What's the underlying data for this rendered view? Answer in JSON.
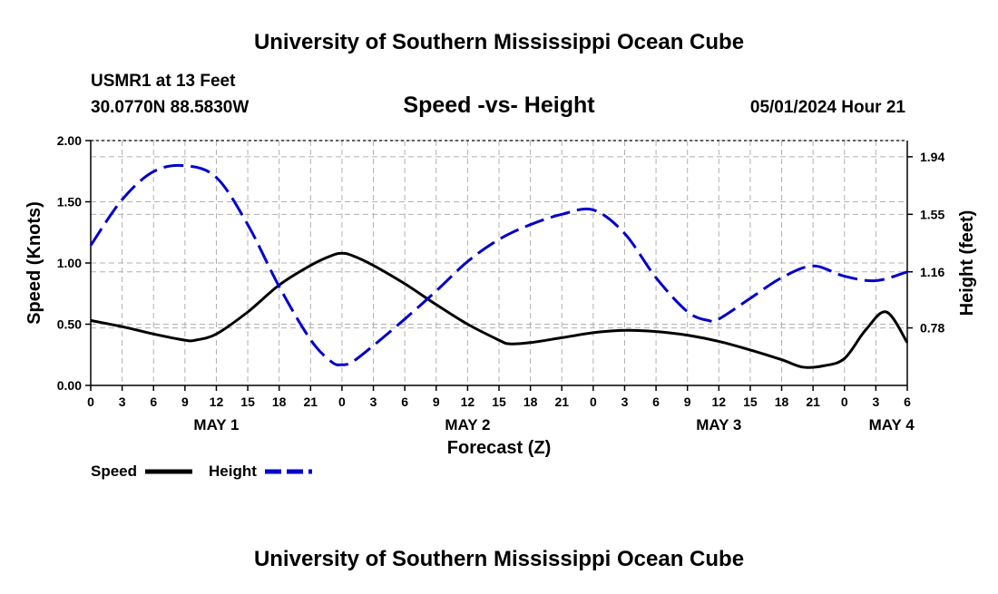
{
  "chart_data": {
    "type": "line",
    "title": "University of Southern Mississippi Ocean Cube",
    "footer_title": "University of Southern Mississippi Ocean Cube",
    "station": "USMR1 at 13 Feet",
    "coordinates": "30.0770N  88.5830W",
    "subtitle": "Speed -vs- Height",
    "issued": "05/01/2024 Hour 21",
    "xlabel": "Forecast (Z)",
    "ylabel_left": "Speed (Knots)",
    "ylabel_right": "Height (feet)",
    "x_range_hours": [
      0,
      78
    ],
    "ylim_left": [
      0,
      2.0
    ],
    "ylim_right_values": [
      0.39,
      2.05
    ],
    "left_ticks": [
      "0.00",
      "0.50",
      "1.00",
      "1.50",
      "2.00"
    ],
    "right_ticks": [
      "0.78",
      "1.16",
      "1.55",
      "1.94"
    ],
    "x_tick_labels": [
      "0",
      "3",
      "6",
      "9",
      "12",
      "15",
      "18",
      "21",
      "0",
      "3",
      "6",
      "9",
      "12",
      "15",
      "18",
      "21",
      "0",
      "3",
      "6",
      "9",
      "12",
      "15",
      "18",
      "21",
      "0",
      "3",
      "6"
    ],
    "day_labels": [
      {
        "label": "MAY 1",
        "hour": 12
      },
      {
        "label": "MAY 2",
        "hour": 36
      },
      {
        "label": "MAY 3",
        "hour": 60
      },
      {
        "label": "MAY 4",
        "hour": 76.5
      }
    ],
    "grid": true,
    "series": [
      {
        "name": "Speed",
        "axis": "left",
        "style": "solid",
        "color": "#000000",
        "x": [
          0,
          3,
          6,
          9,
          10,
          12,
          15,
          18,
          21,
          23,
          24,
          25,
          27,
          30,
          33,
          36,
          39,
          40,
          42,
          45,
          48,
          51,
          54,
          57,
          60,
          63,
          66,
          68,
          70,
          72,
          74,
          76,
          78
        ],
        "values": [
          0.53,
          0.48,
          0.42,
          0.37,
          0.37,
          0.42,
          0.6,
          0.82,
          0.98,
          1.06,
          1.08,
          1.06,
          0.98,
          0.83,
          0.66,
          0.5,
          0.37,
          0.34,
          0.35,
          0.39,
          0.43,
          0.45,
          0.44,
          0.41,
          0.36,
          0.29,
          0.21,
          0.15,
          0.16,
          0.22,
          0.45,
          0.6,
          0.35
        ]
      },
      {
        "name": "Height",
        "axis": "right",
        "style": "dashed",
        "color": "#0000cc",
        "x": [
          0,
          3,
          6,
          9,
          12,
          15,
          18,
          21,
          23,
          24,
          25,
          27,
          30,
          33,
          36,
          39,
          42,
          45,
          48,
          51,
          54,
          57,
          59,
          60,
          63,
          66,
          69,
          72,
          75,
          78
        ],
        "values": [
          1.34,
          1.65,
          1.84,
          1.88,
          1.8,
          1.48,
          1.06,
          0.7,
          0.55,
          0.53,
          0.55,
          0.66,
          0.84,
          1.03,
          1.23,
          1.38,
          1.48,
          1.55,
          1.58,
          1.42,
          1.12,
          0.89,
          0.83,
          0.84,
          0.98,
          1.12,
          1.2,
          1.13,
          1.1,
          1.16
        ]
      }
    ],
    "legend": [
      {
        "label": "Speed",
        "color": "#000000",
        "style": "solid"
      },
      {
        "label": "Height",
        "color": "#0000cc",
        "style": "dashed"
      }
    ]
  }
}
